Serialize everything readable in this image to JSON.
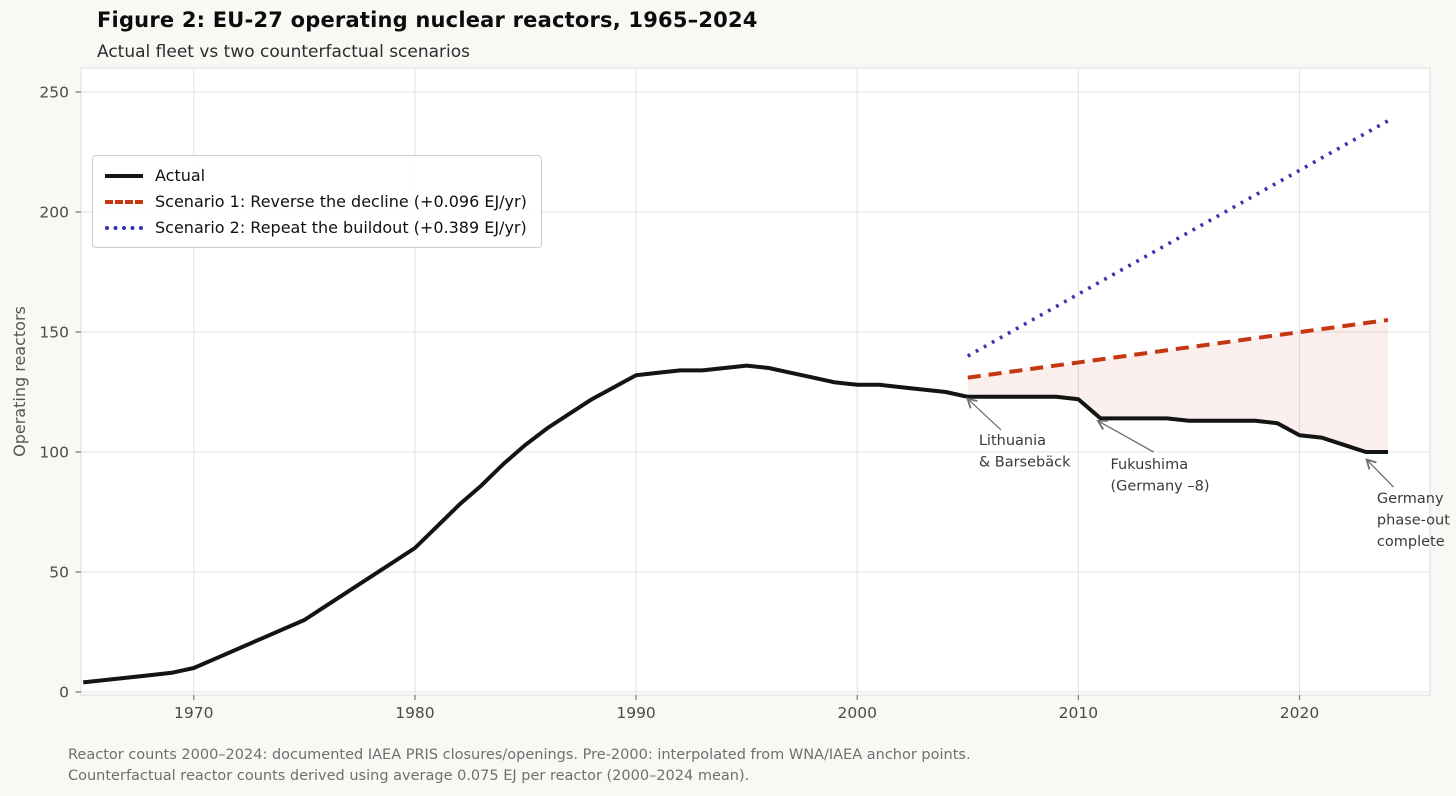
{
  "header": {
    "title": "Figure 2: EU-27 operating nuclear reactors, 1965–2024",
    "subtitle": "Actual fleet vs two counterfactual scenarios"
  },
  "legend": {
    "position": "upper left",
    "items": [
      {
        "label": "Actual",
        "style": "solid",
        "color": "#141414"
      },
      {
        "label": "Scenario 1: Reverse the decline (+0.096 EJ/yr)",
        "style": "dashed",
        "color": "#c53712"
      },
      {
        "label": "Scenario 2: Repeat the buildout (+0.389 EJ/yr)",
        "style": "dotted",
        "color": "#3833aa"
      }
    ]
  },
  "footnote": {
    "line1": "Reactor counts 2000–2024: documented IAEA PRIS closures/openings. Pre-2000: interpolated from WNA/IAEA anchor points.",
    "line2": "Counterfactual reactor counts derived using average 0.075 EJ per reactor (2000–2024 mean)."
  },
  "chart_data": {
    "type": "line",
    "title": "Figure 2: EU-27 operating nuclear reactors, 1965–2024",
    "subtitle": "Actual fleet vs two counterfactual scenarios",
    "xlabel": "",
    "ylabel": "Operating reactors",
    "xlim": [
      1964.9,
      2025.9
    ],
    "ylim": [
      -1.25,
      260
    ],
    "x_ticks": [
      1970,
      1980,
      1990,
      2000,
      2010,
      2020
    ],
    "y_ticks": [
      0,
      50,
      100,
      150,
      200,
      250
    ],
    "grid": true,
    "plot_bg": "#ffffff",
    "grid_color": "#e3e3e3",
    "tick_label_color": "#4b4b4b",
    "axis_label_color": "#555555",
    "series": [
      {
        "name": "Actual",
        "style": "solid",
        "color": "#141414",
        "width": 4,
        "x": [
          1965,
          1966,
          1967,
          1968,
          1969,
          1970,
          1971,
          1972,
          1973,
          1974,
          1975,
          1976,
          1977,
          1978,
          1979,
          1980,
          1981,
          1982,
          1983,
          1984,
          1985,
          1986,
          1987,
          1988,
          1989,
          1990,
          1991,
          1992,
          1993,
          1994,
          1995,
          1996,
          1997,
          1998,
          1999,
          2000,
          2001,
          2002,
          2003,
          2004,
          2005,
          2006,
          2007,
          2008,
          2009,
          2010,
          2011,
          2012,
          2013,
          2014,
          2015,
          2016,
          2017,
          2018,
          2019,
          2020,
          2021,
          2022,
          2023,
          2024
        ],
        "y": [
          4,
          5,
          6,
          7,
          8,
          10,
          14,
          18,
          22,
          26,
          30,
          36,
          42,
          48,
          54,
          60,
          69,
          78,
          86,
          95,
          103,
          110,
          116,
          122,
          127,
          132,
          133,
          134,
          134,
          135,
          136,
          135,
          133,
          131,
          129,
          128,
          128,
          127,
          126,
          125,
          123,
          123,
          123,
          123,
          123,
          122,
          114,
          114,
          114,
          114,
          113,
          113,
          113,
          113,
          112,
          107,
          106,
          103,
          100,
          100
        ]
      },
      {
        "name": "Scenario 1: Reverse the decline (+0.096 EJ/yr)",
        "style": "dashed",
        "color": "#c53712",
        "width": 4,
        "x": [
          2005,
          2024
        ],
        "y": [
          131,
          155
        ]
      },
      {
        "name": "Scenario 2: Repeat the buildout (+0.389 EJ/yr)",
        "style": "dotted",
        "color": "#3833aa",
        "width": 3.6,
        "x": [
          2005,
          2024
        ],
        "y": [
          140,
          238
        ]
      }
    ],
    "fill_between": {
      "upper_series": "Scenario 1: Reverse the decline (+0.096 EJ/yr)",
      "lower_series": "Actual",
      "from_x": 2005,
      "to_x": 2024,
      "color": "rgba(197,55,18,0.08)"
    },
    "annotations": [
      {
        "text": "Lithuania\n& Barsebäck",
        "text_x": 2005.5,
        "text_y": 108.3,
        "arrow_from_x": 2006.5,
        "arrow_from_y": 109.2,
        "arrow_to_x": 2005.0,
        "arrow_to_y": 122.1
      },
      {
        "text": "Fukushima\n(Germany –8)",
        "text_x": 2011.45,
        "text_y": 98.3,
        "arrow_from_x": 2013.4,
        "arrow_from_y": 100.0,
        "arrow_to_x": 2010.9,
        "arrow_to_y": 112.9
      },
      {
        "text": "Germany\nphase-out\ncomplete",
        "text_x": 2023.5,
        "text_y": 84.2,
        "arrow_from_x": 2024.25,
        "arrow_from_y": 85.4,
        "arrow_to_x": 2023.05,
        "arrow_to_y": 96.7
      }
    ]
  }
}
